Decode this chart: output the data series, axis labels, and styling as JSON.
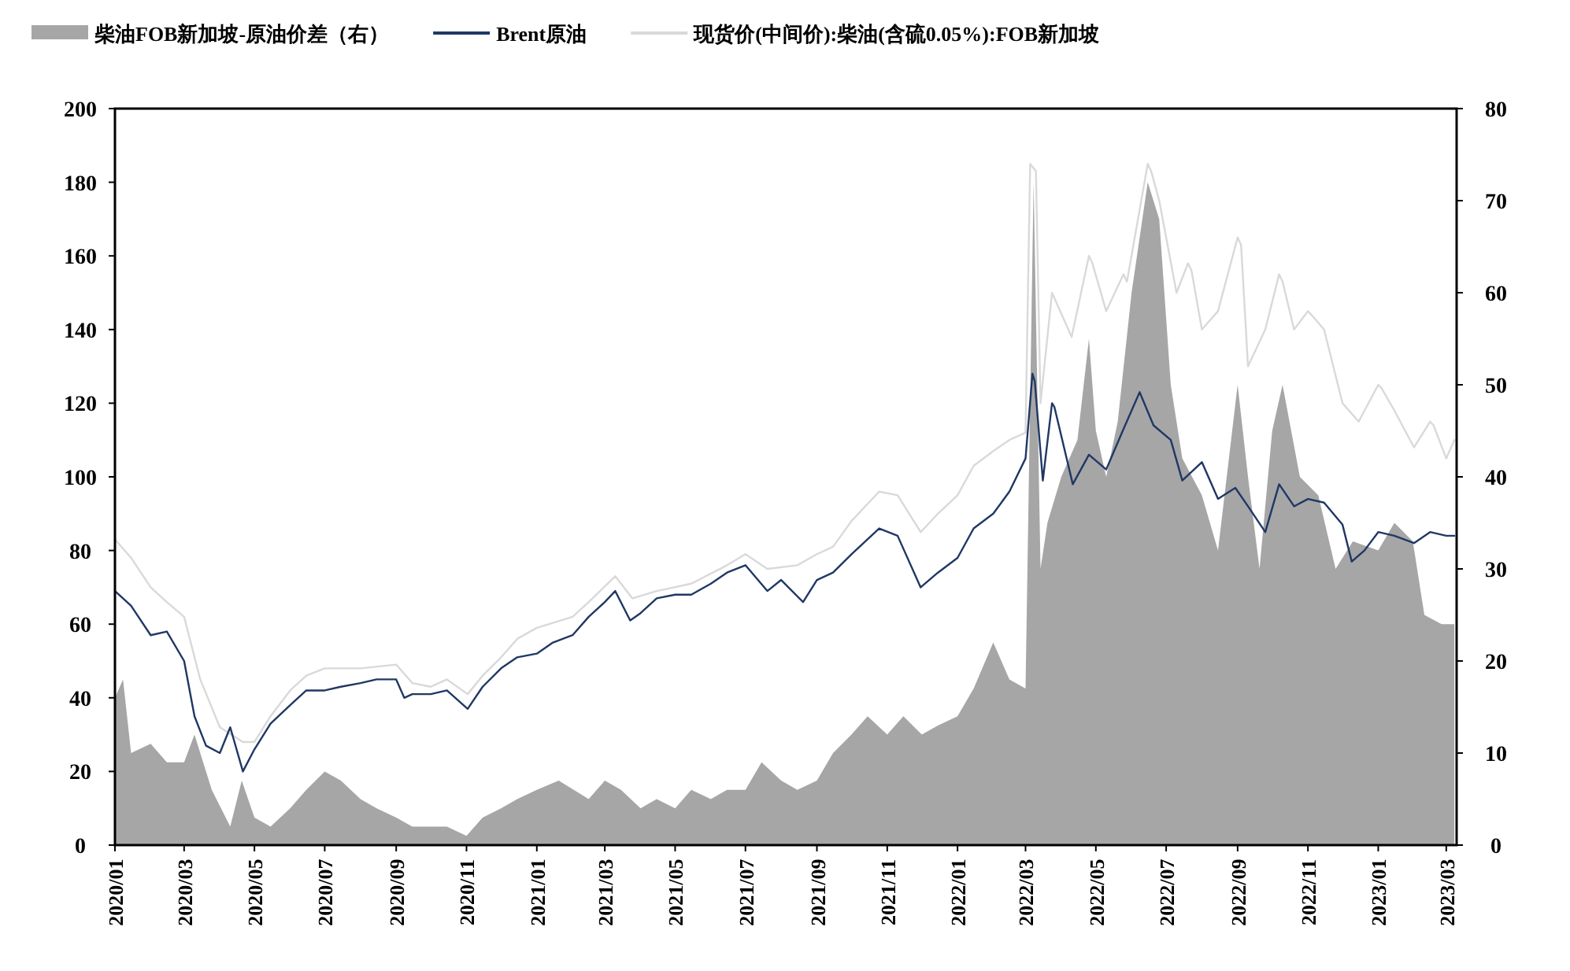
{
  "chart_data": {
    "type": "line",
    "legend": "top",
    "grid": false,
    "line_style": "solid",
    "xlim": [
      "2020-01-01",
      "2023-03-10"
    ],
    "xticks": [
      {
        "value": "2020-01-01",
        "label": "2020/01"
      },
      {
        "value": "2020-03-01",
        "label": "2020/03"
      },
      {
        "value": "2020-05-01",
        "label": "2020/05"
      },
      {
        "value": "2020-07-01",
        "label": "2020/07"
      },
      {
        "value": "2020-09-01",
        "label": "2020/09"
      },
      {
        "value": "2020-11-01",
        "label": "2020/11"
      },
      {
        "value": "2021-01-01",
        "label": "2021/01"
      },
      {
        "value": "2021-03-01",
        "label": "2021/03"
      },
      {
        "value": "2021-05-01",
        "label": "2021/05"
      },
      {
        "value": "2021-07-01",
        "label": "2021/07"
      },
      {
        "value": "2021-09-01",
        "label": "2021/09"
      },
      {
        "value": "2021-11-01",
        "label": "2021/11"
      },
      {
        "value": "2022-01-01",
        "label": "2022/01"
      },
      {
        "value": "2022-03-01",
        "label": "2022/03"
      },
      {
        "value": "2022-05-01",
        "label": "2022/05"
      },
      {
        "value": "2022-07-01",
        "label": "2022/07"
      },
      {
        "value": "2022-09-01",
        "label": "2022/09"
      },
      {
        "value": "2022-11-01",
        "label": "2022/11"
      },
      {
        "value": "2023-01-01",
        "label": "2023/01"
      },
      {
        "value": "2023-03-01",
        "label": "2023/03"
      }
    ],
    "ylim": [
      0,
      200
    ],
    "yticks": [
      0,
      20,
      40,
      60,
      80,
      100,
      120,
      140,
      160,
      180,
      200
    ],
    "y2lim": [
      0,
      80
    ],
    "y2ticks": [
      0,
      10,
      20,
      30,
      40,
      50,
      60,
      70,
      80
    ],
    "series": [
      {
        "name": "柴油FOB新加坡-原油价差（右）",
        "type": "area",
        "axis": "y2",
        "color": "#a6a6a6",
        "x": [
          "2020-01-01",
          "2020-01-08",
          "2020-01-15",
          "2020-02-01",
          "2020-02-15",
          "2020-03-01",
          "2020-03-10",
          "2020-03-25",
          "2020-04-10",
          "2020-04-20",
          "2020-05-01",
          "2020-05-15",
          "2020-06-01",
          "2020-06-15",
          "2020-07-01",
          "2020-07-15",
          "2020-08-01",
          "2020-08-15",
          "2020-09-01",
          "2020-09-15",
          "2020-10-01",
          "2020-10-15",
          "2020-11-01",
          "2020-11-15",
          "2020-12-01",
          "2020-12-15",
          "2021-01-01",
          "2021-01-20",
          "2021-02-15",
          "2021-03-01",
          "2021-03-15",
          "2021-04-01",
          "2021-04-15",
          "2021-05-01",
          "2021-05-15",
          "2021-06-01",
          "2021-06-15",
          "2021-07-01",
          "2021-07-15",
          "2021-08-01",
          "2021-08-15",
          "2021-09-01",
          "2021-09-15",
          "2021-10-01",
          "2021-10-15",
          "2021-11-01",
          "2021-11-15",
          "2021-12-01",
          "2021-12-15",
          "2022-01-01",
          "2022-01-15",
          "2022-02-01",
          "2022-02-15",
          "2022-03-01",
          "2022-03-08",
          "2022-03-14",
          "2022-03-20",
          "2022-04-01",
          "2022-04-15",
          "2022-04-25",
          "2022-05-01",
          "2022-05-10",
          "2022-05-20",
          "2022-06-01",
          "2022-06-15",
          "2022-06-25",
          "2022-07-05",
          "2022-07-15",
          "2022-08-01",
          "2022-08-15",
          "2022-09-01",
          "2022-09-10",
          "2022-09-20",
          "2022-10-01",
          "2022-10-10",
          "2022-10-25",
          "2022-11-10",
          "2022-11-25",
          "2022-12-10",
          "2023-01-01",
          "2023-01-15",
          "2023-01-31",
          "2023-02-10",
          "2023-02-25",
          "2023-03-08"
        ],
        "values": [
          16,
          18,
          10,
          11,
          9,
          9,
          12,
          6,
          2,
          7,
          3,
          2,
          4,
          6,
          8,
          7,
          5,
          4,
          3,
          2,
          2,
          2,
          1,
          3,
          4,
          5,
          6,
          7,
          5,
          7,
          6,
          4,
          5,
          4,
          6,
          5,
          6,
          6,
          9,
          7,
          6,
          7,
          10,
          12,
          14,
          12,
          14,
          12,
          13,
          14,
          17,
          22,
          18,
          17,
          72,
          30,
          35,
          40,
          44,
          55,
          45,
          40,
          46,
          60,
          72,
          68,
          50,
          42,
          38,
          32,
          50,
          40,
          30,
          45,
          50,
          40,
          38,
          30,
          33,
          32,
          35,
          33,
          25,
          24,
          24
        ]
      },
      {
        "name": "Brent原油",
        "color": "#1f3864",
        "x": [
          "2020-01-01",
          "2020-01-15",
          "2020-02-01",
          "2020-02-15",
          "2020-03-01",
          "2020-03-10",
          "2020-03-20",
          "2020-04-01",
          "2020-04-10",
          "2020-04-21",
          "2020-05-01",
          "2020-05-15",
          "2020-06-01",
          "2020-06-15",
          "2020-07-01",
          "2020-07-15",
          "2020-08-01",
          "2020-08-15",
          "2020-09-01",
          "2020-09-08",
          "2020-09-15",
          "2020-10-01",
          "2020-10-15",
          "2020-11-02",
          "2020-11-15",
          "2020-12-01",
          "2020-12-15",
          "2021-01-01",
          "2021-01-15",
          "2021-02-01",
          "2021-02-15",
          "2021-03-01",
          "2021-03-10",
          "2021-03-23",
          "2021-04-01",
          "2021-04-15",
          "2021-05-01",
          "2021-05-15",
          "2021-06-01",
          "2021-06-15",
          "2021-07-01",
          "2021-07-20",
          "2021-08-01",
          "2021-08-20",
          "2021-09-01",
          "2021-09-15",
          "2021-10-01",
          "2021-10-25",
          "2021-11-10",
          "2021-11-30",
          "2021-12-15",
          "2022-01-01",
          "2022-01-15",
          "2022-02-01",
          "2022-02-15",
          "2022-03-01",
          "2022-03-07",
          "2022-03-09",
          "2022-03-16",
          "2022-03-24",
          "2022-03-26",
          "2022-04-11",
          "2022-04-25",
          "2022-05-10",
          "2022-05-25",
          "2022-06-08",
          "2022-06-20",
          "2022-07-05",
          "2022-07-15",
          "2022-08-01",
          "2022-08-15",
          "2022-08-30",
          "2022-09-10",
          "2022-09-25",
          "2022-10-07",
          "2022-10-20",
          "2022-11-01",
          "2022-11-15",
          "2022-12-01",
          "2022-12-09",
          "2022-12-20",
          "2023-01-01",
          "2023-01-15",
          "2023-02-01",
          "2023-02-15",
          "2023-03-01",
          "2023-03-08"
        ],
        "values": [
          69,
          65,
          57,
          58,
          50,
          35,
          27,
          25,
          32,
          20,
          26,
          33,
          38,
          42,
          42,
          43,
          44,
          45,
          45,
          40,
          41,
          41,
          42,
          37,
          43,
          48,
          51,
          52,
          55,
          57,
          62,
          66,
          69,
          61,
          63,
          67,
          68,
          68,
          71,
          74,
          76,
          69,
          72,
          66,
          72,
          74,
          79,
          86,
          84,
          70,
          74,
          78,
          86,
          90,
          96,
          105,
          128,
          126,
          99,
          120,
          119,
          98,
          106,
          102,
          113,
          123,
          114,
          110,
          99,
          104,
          94,
          97,
          92,
          85,
          98,
          92,
          94,
          93,
          87,
          77,
          80,
          85,
          84,
          82,
          85,
          84,
          84
        ]
      },
      {
        "name": "现货价(中间价):柴油(含硫0.05%):FOB新加坡",
        "color": "#d9d9d9",
        "x": [
          "2020-01-01",
          "2020-01-15",
          "2020-02-01",
          "2020-02-15",
          "2020-03-01",
          "2020-03-15",
          "2020-04-01",
          "2020-04-21",
          "2020-05-01",
          "2020-05-15",
          "2020-06-01",
          "2020-06-15",
          "2020-07-01",
          "2020-08-01",
          "2020-09-01",
          "2020-09-15",
          "2020-10-01",
          "2020-10-15",
          "2020-11-02",
          "2020-11-15",
          "2020-12-01",
          "2020-12-15",
          "2021-01-01",
          "2021-02-01",
          "2021-02-15",
          "2021-03-10",
          "2021-03-25",
          "2021-04-15",
          "2021-05-15",
          "2021-06-15",
          "2021-07-01",
          "2021-07-20",
          "2021-08-15",
          "2021-09-01",
          "2021-09-15",
          "2021-10-01",
          "2021-10-25",
          "2021-11-10",
          "2021-11-30",
          "2021-12-15",
          "2022-01-01",
          "2022-01-15",
          "2022-02-01",
          "2022-02-15",
          "2022-03-01",
          "2022-03-05",
          "2022-03-10",
          "2022-03-14",
          "2022-03-24",
          "2022-04-10",
          "2022-04-25",
          "2022-04-28",
          "2022-05-10",
          "2022-05-25",
          "2022-05-28",
          "2022-06-15",
          "2022-06-18",
          "2022-06-25",
          "2022-07-10",
          "2022-07-20",
          "2022-07-23",
          "2022-08-01",
          "2022-08-15",
          "2022-09-01",
          "2022-09-04",
          "2022-09-10",
          "2022-09-25",
          "2022-10-07",
          "2022-10-10",
          "2022-10-20",
          "2022-11-01",
          "2022-11-04",
          "2022-11-15",
          "2022-12-01",
          "2022-12-15",
          "2023-01-01",
          "2023-01-04",
          "2023-01-15",
          "2023-02-01",
          "2023-02-15",
          "2023-02-18",
          "2023-03-01",
          "2023-03-08"
        ],
        "values": [
          83,
          78,
          70,
          66,
          62,
          45,
          32,
          28,
          28,
          35,
          42,
          46,
          48,
          48,
          49,
          44,
          43,
          45,
          41,
          46,
          51,
          56,
          59,
          62,
          66,
          73,
          67,
          69,
          71,
          76,
          79,
          75,
          76,
          79,
          81,
          88,
          96,
          95,
          85,
          90,
          95,
          103,
          107,
          110,
          112,
          185,
          183,
          120,
          150,
          138,
          160,
          158,
          145,
          155,
          153,
          185,
          183,
          175,
          150,
          158,
          156,
          140,
          145,
          165,
          163,
          130,
          140,
          155,
          153,
          140,
          145,
          144,
          140,
          120,
          115,
          125,
          124,
          118,
          108,
          115,
          114,
          105,
          110
        ]
      }
    ]
  }
}
